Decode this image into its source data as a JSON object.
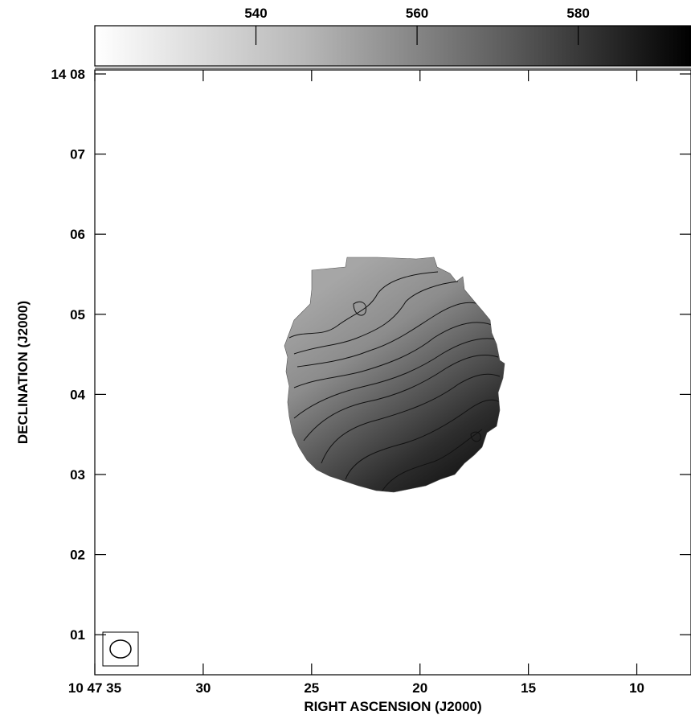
{
  "chart_data": {
    "type": "heatmap",
    "xlabel": "RIGHT ASCENSION (J2000)",
    "ylabel": "DECLINATION (J2000)",
    "x_ticks": [
      {
        "value": 35,
        "label": "10 47 35"
      },
      {
        "value": 30,
        "label": "30"
      },
      {
        "value": 25,
        "label": "25"
      },
      {
        "value": 20,
        "label": "20"
      },
      {
        "value": 15,
        "label": "15"
      },
      {
        "value": 10,
        "label": "10"
      }
    ],
    "y_ticks": [
      {
        "value": 8,
        "label": "14 08"
      },
      {
        "value": 7,
        "label": "07"
      },
      {
        "value": 6,
        "label": "06"
      },
      {
        "value": 5,
        "label": "05"
      },
      {
        "value": 4,
        "label": "04"
      },
      {
        "value": 3,
        "label": "03"
      },
      {
        "value": 2,
        "label": "02"
      },
      {
        "value": 1,
        "label": "01"
      }
    ],
    "xlim": [
      35,
      7.5
    ],
    "ylim": [
      0.5,
      8.05
    ],
    "colorbar": {
      "ticks": [
        {
          "value": 540,
          "label": "540"
        },
        {
          "value": 560,
          "label": "560"
        },
        {
          "value": 580,
          "label": "580"
        }
      ],
      "range": [
        520,
        594
      ],
      "cmap": "gray_r",
      "position": "top"
    },
    "contours": 9,
    "beam": "ellipse, lower-left corner",
    "background_color": "#ffffff"
  }
}
